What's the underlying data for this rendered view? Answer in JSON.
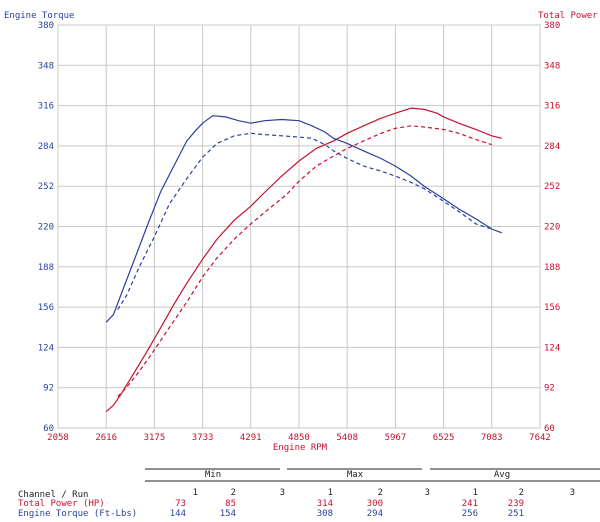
{
  "chart_data": {
    "type": "line",
    "left_axis_label": "Engine Torque",
    "right_axis_label": "Total Power",
    "xlabel": "Engine RPM",
    "x_ticks": [
      2058,
      2616,
      3175,
      3733,
      4291,
      4850,
      5408,
      5967,
      6525,
      7083,
      7642
    ],
    "y_ticks": [
      60,
      92,
      124,
      156,
      188,
      220,
      252,
      284,
      316,
      348,
      380
    ],
    "xlim": [
      2058,
      7642
    ],
    "ylim": [
      60,
      380
    ],
    "grid": true,
    "colors": {
      "power": "#c8102e",
      "torque": "#2a3f9e",
      "grid": "#c8c8c8"
    },
    "series": [
      {
        "name": "Total Power (HP)",
        "run": 1,
        "color": "#c8102e",
        "dash": false,
        "x": [
          2616,
          2700,
          2800,
          2950,
          3100,
          3250,
          3400,
          3550,
          3733,
          3900,
          4100,
          4291,
          4450,
          4650,
          4850,
          5050,
          5250,
          5408,
          5600,
          5800,
          5967,
          6150,
          6300,
          6450,
          6525,
          6700,
          6900,
          7083,
          7200
        ],
        "y": [
          73,
          78,
          88,
          105,
          122,
          140,
          158,
          175,
          194,
          210,
          225,
          236,
          247,
          260,
          272,
          282,
          288,
          294,
          300,
          306,
          310,
          314,
          313,
          310,
          307,
          302,
          297,
          292,
          290
        ]
      },
      {
        "name": "Total Power (HP)",
        "run": 2,
        "color": "#c8102e",
        "dash": true,
        "x": [
          2750,
          2850,
          3000,
          3175,
          3350,
          3550,
          3733,
          3900,
          4100,
          4291,
          4500,
          4700,
          4850,
          5050,
          5250,
          5408,
          5600,
          5800,
          5967,
          6150,
          6300,
          6525,
          6700,
          6900,
          7083
        ],
        "y": [
          85,
          92,
          105,
          122,
          140,
          160,
          180,
          195,
          210,
          222,
          234,
          245,
          256,
          268,
          276,
          282,
          288,
          294,
          298,
          300,
          299,
          297,
          294,
          289,
          285
        ]
      },
      {
        "name": "Engine Torque (Ft-Lbs)",
        "run": 1,
        "color": "#2a3f9e",
        "dash": false,
        "x": [
          2616,
          2700,
          2800,
          2950,
          3100,
          3250,
          3400,
          3550,
          3650,
          3733,
          3850,
          4000,
          4150,
          4291,
          4450,
          4650,
          4850,
          5000,
          5150,
          5250,
          5408,
          5600,
          5800,
          5967,
          6150,
          6300,
          6525,
          6700,
          6900,
          7083,
          7200
        ],
        "y": [
          144,
          150,
          168,
          195,
          222,
          248,
          268,
          288,
          296,
          302,
          308,
          307,
          304,
          302,
          304,
          305,
          304,
          300,
          295,
          290,
          286,
          280,
          274,
          268,
          260,
          252,
          242,
          234,
          226,
          218,
          215
        ]
      },
      {
        "name": "Engine Torque (Ft-Lbs)",
        "run": 2,
        "color": "#2a3f9e",
        "dash": true,
        "x": [
          2750,
          2850,
          3000,
          3175,
          3350,
          3550,
          3733,
          3900,
          4100,
          4291,
          4450,
          4650,
          4850,
          5000,
          5150,
          5250,
          5408,
          5600,
          5800,
          5967,
          6150,
          6300,
          6525,
          6700,
          6900,
          7083
        ],
        "y": [
          154,
          165,
          188,
          212,
          238,
          258,
          275,
          286,
          292,
          294,
          293,
          292,
          291,
          290,
          285,
          280,
          274,
          268,
          264,
          260,
          255,
          250,
          240,
          232,
          222,
          218
        ]
      }
    ]
  },
  "summary": {
    "headers": {
      "min": "Min",
      "max": "Max",
      "avg": "Avg"
    },
    "channel_run_label": "Channel / Run",
    "run_labels": [
      "1",
      "2",
      "3"
    ],
    "rows": [
      {
        "label": "Total Power (HP)",
        "color": "#c8102e",
        "min": [
          "73",
          "85",
          ""
        ],
        "max": [
          "314",
          "300",
          ""
        ],
        "avg": [
          "241",
          "239",
          ""
        ]
      },
      {
        "label": "Engine Torque (Ft-Lbs)",
        "color": "#2a3f9e",
        "min": [
          "144",
          "154",
          ""
        ],
        "max": [
          "308",
          "294",
          ""
        ],
        "avg": [
          "256",
          "251",
          ""
        ]
      }
    ]
  }
}
